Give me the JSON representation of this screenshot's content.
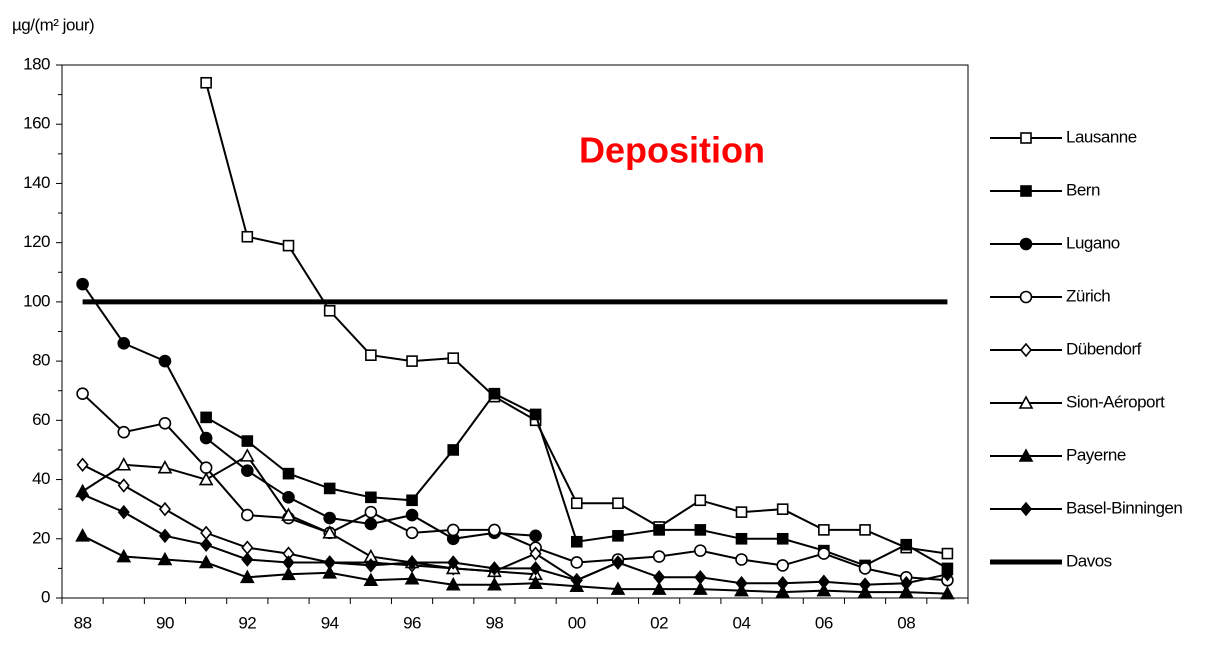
{
  "chart_data": {
    "type": "line",
    "title": "Deposition",
    "y_label": "µg/(m² jour)",
    "title_color": "#ff0000",
    "categories": [
      "88",
      null,
      "90",
      null,
      "92",
      null,
      "94",
      null,
      "96",
      null,
      "98",
      null,
      "00",
      null,
      "02",
      null,
      "04",
      null,
      "06",
      null,
      "08",
      null
    ],
    "ylim": [
      0,
      180
    ],
    "yticks": [
      0,
      20,
      40,
      60,
      80,
      100,
      120,
      140,
      160,
      180
    ],
    "legend": "right",
    "series": [
      {
        "name": "Lausanne",
        "color": "#000000",
        "marker": "square",
        "filled": false,
        "line_width": 2,
        "values": [
          null,
          null,
          null,
          174,
          122,
          119,
          97,
          82,
          80,
          81,
          68,
          60,
          32,
          32,
          24,
          33,
          29,
          30,
          23,
          23,
          17,
          15
        ]
      },
      {
        "name": "Bern",
        "color": "#000000",
        "marker": "square",
        "filled": true,
        "line_width": 2,
        "values": [
          null,
          null,
          null,
          61,
          53,
          42,
          37,
          34,
          33,
          50,
          69,
          62,
          19,
          21,
          23,
          23,
          20,
          20,
          16,
          11,
          18,
          10
        ]
      },
      {
        "name": "Lugano",
        "color": "#000000",
        "marker": "circle",
        "filled": true,
        "line_width": 2,
        "values": [
          106,
          86,
          80,
          54,
          43,
          34,
          27,
          25,
          28,
          20,
          22,
          21,
          null,
          null,
          null,
          null,
          null,
          null,
          null,
          null,
          null,
          null
        ]
      },
      {
        "name": "Zürich",
        "color": "#000000",
        "marker": "circle",
        "filled": false,
        "line_width": 2,
        "values": [
          69,
          56,
          59,
          44,
          28,
          27,
          22,
          29,
          22,
          23,
          23,
          17,
          12,
          13,
          14,
          16,
          13,
          11,
          15,
          10,
          7,
          6
        ]
      },
      {
        "name": "Dübendorf",
        "color": "#000000",
        "marker": "diamond",
        "filled": false,
        "line_width": 2,
        "values": [
          45,
          38,
          30,
          22,
          17,
          15,
          12,
          12,
          11,
          10,
          9,
          15,
          6,
          12,
          null,
          null,
          null,
          null,
          null,
          null,
          null,
          null
        ]
      },
      {
        "name": "Sion-Aéroport",
        "color": "#000000",
        "marker": "triangle",
        "filled": false,
        "line_width": 2,
        "values": [
          36,
          45,
          44,
          40,
          48,
          28,
          22,
          14,
          12,
          10,
          9,
          8,
          null,
          null,
          null,
          null,
          null,
          null,
          null,
          null,
          null,
          null
        ]
      },
      {
        "name": "Payerne",
        "color": "#000000",
        "marker": "triangle",
        "filled": true,
        "line_width": 2,
        "values": [
          21,
          14,
          13,
          12,
          7,
          8,
          8.5,
          6,
          6.5,
          4.5,
          4.5,
          5,
          4,
          3,
          3,
          3,
          2.5,
          2,
          2.5,
          2,
          2,
          1.5
        ]
      },
      {
        "name": "Basel-Binningen",
        "color": "#000000",
        "marker": "diamond",
        "filled": true,
        "line_width": 2,
        "values": [
          35,
          29,
          21,
          18,
          13,
          12,
          12,
          11,
          12,
          12,
          10,
          10,
          6,
          12,
          7,
          7,
          5,
          5,
          5.5,
          4.5,
          5,
          8
        ]
      },
      {
        "name": "Davos",
        "color": "#000000",
        "marker": "none",
        "filled": true,
        "line_width": 5,
        "values": [
          100,
          100,
          100,
          100,
          100,
          100,
          100,
          100,
          100,
          100,
          100,
          100,
          100,
          100,
          100,
          100,
          100,
          100,
          100,
          100,
          100,
          100
        ]
      }
    ]
  }
}
